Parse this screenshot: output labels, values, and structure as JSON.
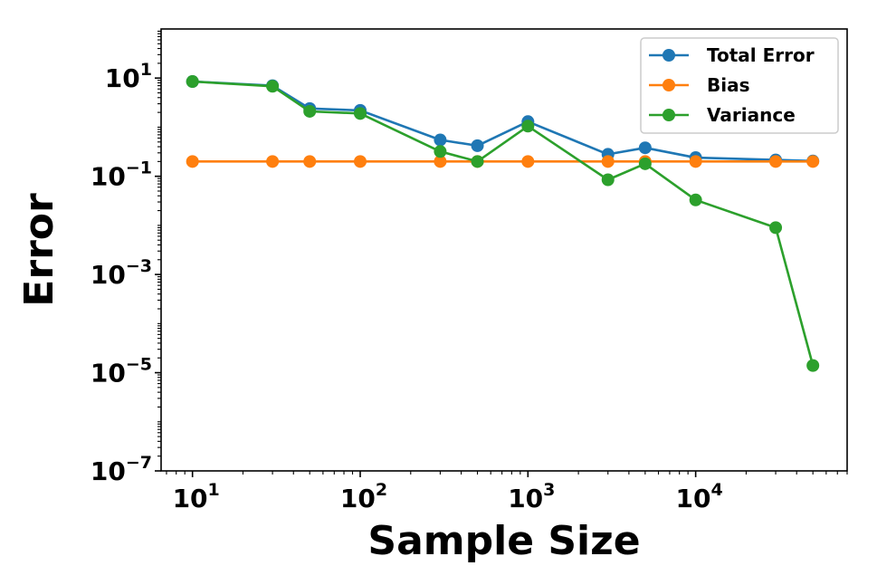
{
  "chart_data": {
    "type": "line",
    "xlabel": "Sample Size",
    "ylabel": "Error",
    "x_scale": "log",
    "y_scale": "log",
    "xlim": [
      6.5,
      80000
    ],
    "ylim": [
      1e-07,
      100
    ],
    "x_ticks": [
      {
        "value": 10,
        "base": "10",
        "exp": "1"
      },
      {
        "value": 100,
        "base": "10",
        "exp": "2"
      },
      {
        "value": 1000,
        "base": "10",
        "exp": "3"
      },
      {
        "value": 10000,
        "base": "10",
        "exp": "4"
      }
    ],
    "y_ticks": [
      {
        "value": 10,
        "base": "10",
        "exp": "1"
      },
      {
        "value": 0.1,
        "base": "10",
        "exp": "−1"
      },
      {
        "value": 0.001,
        "base": "10",
        "exp": "−3"
      },
      {
        "value": 1e-05,
        "base": "10",
        "exp": "−5"
      },
      {
        "value": 1e-07,
        "base": "10",
        "exp": "−7"
      }
    ],
    "legend_position": "top-right",
    "x": [
      10,
      30,
      50,
      100,
      300,
      500,
      1000,
      3000,
      5000,
      10000,
      30000,
      50000
    ],
    "series": [
      {
        "name": "Total Error",
        "color": "#1f77b4",
        "values": [
          8.5,
          7.0,
          2.4,
          2.2,
          0.55,
          0.42,
          1.3,
          0.28,
          0.38,
          0.24,
          0.215,
          0.205
        ]
      },
      {
        "name": "Bias",
        "color": "#ff7f0e",
        "values": [
          0.2,
          0.2,
          0.2,
          0.2,
          0.2,
          0.2,
          0.2,
          0.2,
          0.2,
          0.2,
          0.2,
          0.2
        ]
      },
      {
        "name": "Variance",
        "color": "#2ca02c",
        "values": [
          8.5,
          6.8,
          2.1,
          1.9,
          0.32,
          0.2,
          1.05,
          0.085,
          0.18,
          0.033,
          0.009,
          1.4e-05
        ]
      }
    ]
  }
}
